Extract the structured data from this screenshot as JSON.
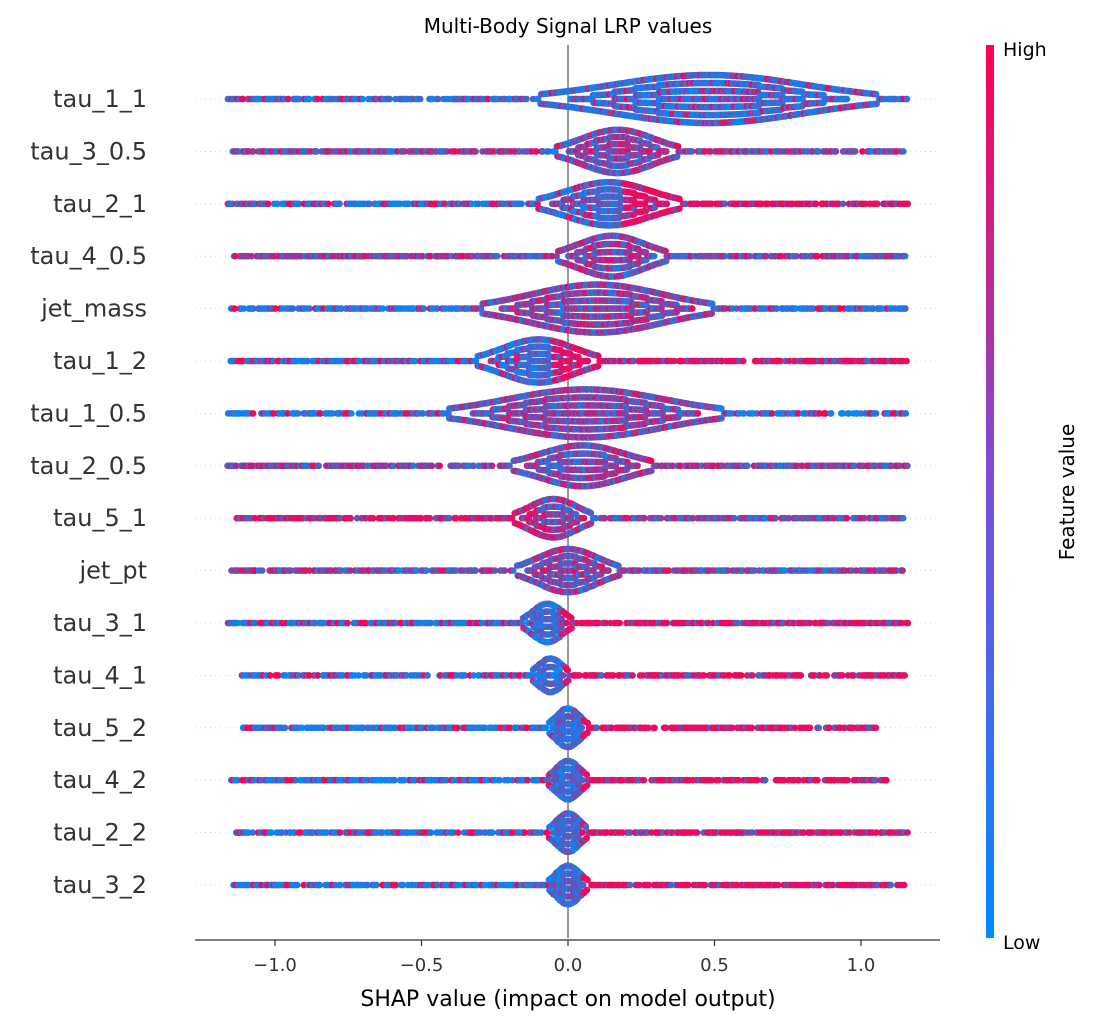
{
  "chart_data": {
    "type": "scatter",
    "subtype": "shap-beeswarm",
    "title": "Multi-Body Signal LRP values",
    "xlabel": "SHAP value (impact on model output)",
    "xlim": [
      -1.25,
      1.25
    ],
    "xticks": [
      -1.0,
      -0.5,
      0.0,
      0.5,
      1.0
    ],
    "xtick_labels": [
      "−1.0",
      "−0.5",
      "0.0",
      "0.5",
      "1.0"
    ],
    "zero_line": 0.0,
    "features": [
      {
        "name": "tau_1_1",
        "min": -1.16,
        "max": 1.16,
        "peak": 0.48,
        "spread": 0.32,
        "peak_height": 1.0,
        "pattern": "blue_dominant"
      },
      {
        "name": "tau_3_0.5",
        "min": -1.15,
        "max": 1.15,
        "peak": 0.17,
        "spread": 0.12,
        "peak_height": 0.9,
        "pattern": "mixed"
      },
      {
        "name": "tau_2_1",
        "min": -1.16,
        "max": 1.16,
        "peak": 0.14,
        "spread": 0.14,
        "peak_height": 0.9,
        "pattern": "blue_left_red_right"
      },
      {
        "name": "tau_4_0.5",
        "min": -1.14,
        "max": 1.15,
        "peak": 0.15,
        "spread": 0.11,
        "peak_height": 0.85,
        "pattern": "mixed"
      },
      {
        "name": "jet_mass",
        "min": -1.15,
        "max": 1.16,
        "peak": 0.1,
        "spread": 0.22,
        "peak_height": 1.0,
        "pattern": "mixed_blue_tails"
      },
      {
        "name": "tau_1_2",
        "min": -1.16,
        "max": 1.16,
        "peak": -0.1,
        "spread": 0.12,
        "peak_height": 0.9,
        "pattern": "blue_left_red_right"
      },
      {
        "name": "tau_1_0.5",
        "min": -1.16,
        "max": 1.16,
        "peak": 0.06,
        "spread": 0.26,
        "peak_height": 1.0,
        "pattern": "mixed_blue_tails"
      },
      {
        "name": "tau_2_0.5",
        "min": -1.16,
        "max": 1.16,
        "peak": 0.05,
        "spread": 0.14,
        "peak_height": 0.85,
        "pattern": "mixed"
      },
      {
        "name": "tau_5_1",
        "min": -1.13,
        "max": 1.15,
        "peak": -0.05,
        "spread": 0.08,
        "peak_height": 0.8,
        "pattern": "red_left_mixed_right"
      },
      {
        "name": "jet_pt",
        "min": -1.15,
        "max": 1.15,
        "peak": 0.0,
        "spread": 0.1,
        "peak_height": 0.9,
        "pattern": "mixed"
      },
      {
        "name": "tau_3_1",
        "min": -1.16,
        "max": 1.16,
        "peak": -0.07,
        "spread": 0.05,
        "peak_height": 0.8,
        "pattern": "blue_left_red_right"
      },
      {
        "name": "tau_4_1",
        "min": -1.12,
        "max": 1.15,
        "peak": -0.06,
        "spread": 0.04,
        "peak_height": 0.7,
        "pattern": "blue_left_red_right"
      },
      {
        "name": "tau_5_2",
        "min": -1.11,
        "max": 1.06,
        "peak": 0.0,
        "spread": 0.04,
        "peak_height": 0.8,
        "pattern": "blue_left_red_right"
      },
      {
        "name": "tau_4_2",
        "min": -1.15,
        "max": 1.09,
        "peak": 0.0,
        "spread": 0.04,
        "peak_height": 0.8,
        "pattern": "blue_left_red_right"
      },
      {
        "name": "tau_2_2",
        "min": -1.13,
        "max": 1.16,
        "peak": 0.0,
        "spread": 0.04,
        "peak_height": 0.8,
        "pattern": "blue_left_red_right"
      },
      {
        "name": "tau_3_2",
        "min": -1.14,
        "max": 1.15,
        "peak": 0.0,
        "spread": 0.04,
        "peak_height": 0.8,
        "pattern": "blue_left_red_right"
      }
    ],
    "colorbar": {
      "label": "Feature value",
      "high_label": "High",
      "low_label": "Low",
      "colors": [
        "#008bfb",
        "#7a4fd8",
        "#ff0052"
      ]
    },
    "colors": {
      "low": "#008bfb",
      "high": "#ff0052",
      "zero_line": "#999999",
      "axis": "#333333",
      "row_guide": "#cccccc"
    }
  }
}
